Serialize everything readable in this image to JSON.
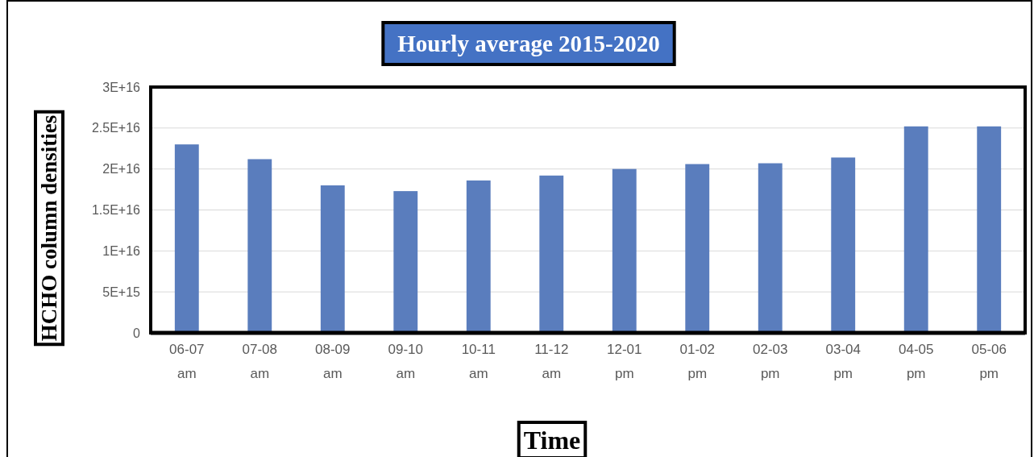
{
  "chart_data": {
    "type": "bar",
    "title": "Hourly average 2015-2020",
    "xlabel": "Time",
    "ylabel": "HCHO column densities",
    "categories": [
      "06-07 am",
      "07-08 am",
      "08-09 am",
      "09-10 am",
      "10-11 am",
      "11-12 am",
      "12-01 pm",
      "01-02 pm",
      "02-03 pm",
      "03-04 pm",
      "04-05 pm",
      "05-06 pm"
    ],
    "values": [
      2.3e+16,
      2.12e+16,
      1.8e+16,
      1.73e+16,
      1.86e+16,
      1.92e+16,
      2e+16,
      2.06e+16,
      2.07e+16,
      2.14e+16,
      2.52e+16,
      2.52e+16
    ],
    "color": "#5a7dbd",
    "ylim": [
      0,
      3e+16
    ],
    "yticks": [
      0,
      {
        "value": 5000000000000000.0,
        "label": "5E+15"
      },
      {
        "value": 1e+16,
        "label": "1E+16"
      },
      {
        "value": 1.5e+16,
        "label": "1.5E+16"
      },
      {
        "value": 2e+16,
        "label": "2E+16"
      },
      {
        "value": 2.5e+16,
        "label": "2.5E+16"
      },
      {
        "value": 3e+16,
        "label": "3E+16"
      }
    ],
    "grid": "y"
  }
}
